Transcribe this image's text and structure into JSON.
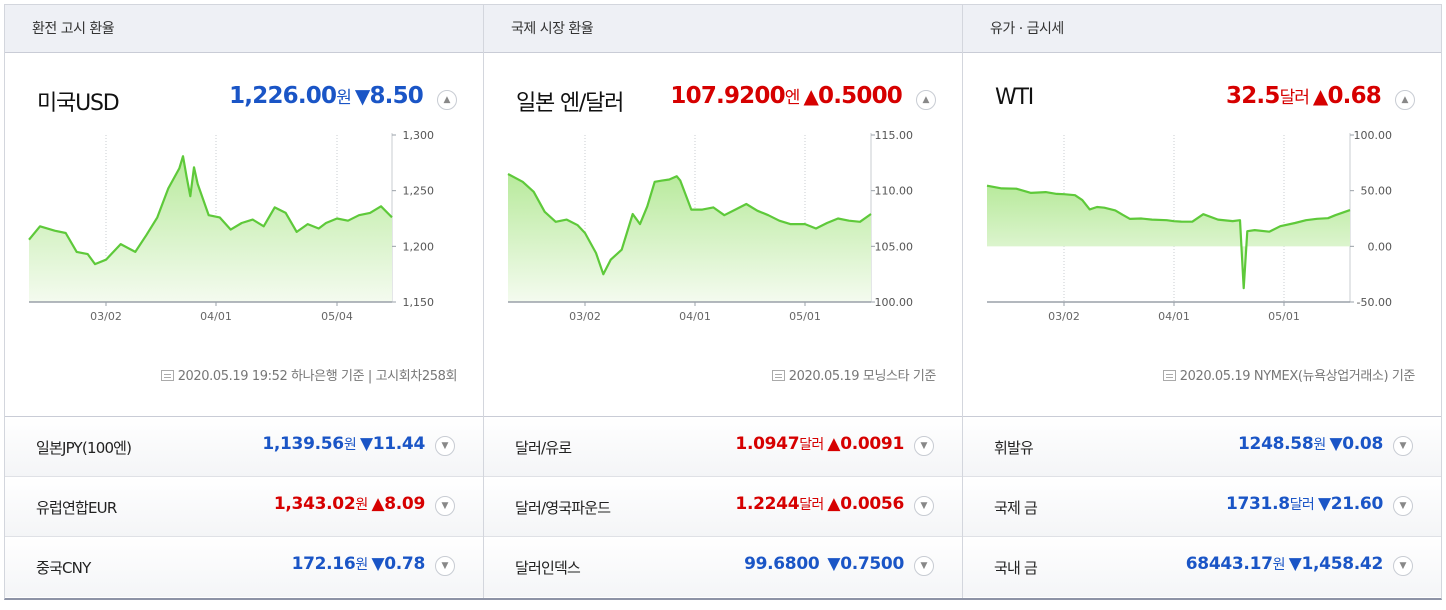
{
  "columns": [
    {
      "header": "환전 고시 환율",
      "main": {
        "title": "미국USD",
        "price": "1,226.00",
        "unit": "원",
        "arrow": "▼",
        "change": "8.50",
        "direction": "down",
        "toggle_icon": "chevron-up-icon"
      },
      "chart_data": {
        "type": "area",
        "yticks": [
          "1,300",
          "1,250",
          "1,200",
          "1,150"
        ],
        "ylim": [
          1150,
          1300
        ],
        "xticks": [
          "03/02",
          "04/01",
          "05/04"
        ],
        "xtick_dates": [
          "2020-03-02",
          "2020-04-01",
          "2020-05-04"
        ],
        "xlim": [
          "2020-02-10",
          "2020-05-19"
        ],
        "series": [
          {
            "values": [
              [
                "2020-02-10",
                1206
              ],
              [
                "2020-02-13",
                1218
              ],
              [
                "2020-02-17",
                1214
              ],
              [
                "2020-02-20",
                1212
              ],
              [
                "2020-02-23",
                1195
              ],
              [
                "2020-02-26",
                1193
              ],
              [
                "2020-02-28",
                1184
              ],
              [
                "2020-03-02",
                1188
              ],
              [
                "2020-03-06",
                1202
              ],
              [
                "2020-03-10",
                1195
              ],
              [
                "2020-03-13",
                1210
              ],
              [
                "2020-03-16",
                1226
              ],
              [
                "2020-03-19",
                1252
              ],
              [
                "2020-03-22",
                1270
              ],
              [
                "2020-03-23",
                1281
              ],
              [
                "2020-03-24",
                1262
              ],
              [
                "2020-03-25",
                1245
              ],
              [
                "2020-03-26",
                1271
              ],
              [
                "2020-03-27",
                1256
              ],
              [
                "2020-03-30",
                1228
              ],
              [
                "2020-04-02",
                1226
              ],
              [
                "2020-04-05",
                1215
              ],
              [
                "2020-04-08",
                1221
              ],
              [
                "2020-04-11",
                1224
              ],
              [
                "2020-04-14",
                1218
              ],
              [
                "2020-04-17",
                1235
              ],
              [
                "2020-04-20",
                1230
              ],
              [
                "2020-04-23",
                1213
              ],
              [
                "2020-04-26",
                1220
              ],
              [
                "2020-04-29",
                1216
              ],
              [
                "2020-05-01",
                1221
              ],
              [
                "2020-05-04",
                1225
              ],
              [
                "2020-05-07",
                1223
              ],
              [
                "2020-05-10",
                1228
              ],
              [
                "2020-05-13",
                1230
              ],
              [
                "2020-05-16",
                1236
              ],
              [
                "2020-05-19",
                1226
              ]
            ]
          }
        ]
      },
      "source_text": "2020.05.19 19:52 하나은행 기준 | 고시회차258회",
      "rows": [
        {
          "name": "일본JPY(100엔)",
          "price": "1,139.56",
          "unit": "원",
          "arrow": "▼",
          "change": "11.44",
          "direction": "down"
        },
        {
          "name": "유럽연합EUR",
          "price": "1,343.02",
          "unit": "원",
          "arrow": "▲",
          "change": "8.09",
          "direction": "up"
        },
        {
          "name": "중국CNY",
          "price": "172.16",
          "unit": "원",
          "arrow": "▼",
          "change": "0.78",
          "direction": "down"
        }
      ]
    },
    {
      "header": "국제 시장 환율",
      "main": {
        "title": "일본 엔/달러",
        "price": "107.9200",
        "unit": "엔",
        "arrow": "▲",
        "change": "0.5000",
        "direction": "up",
        "toggle_icon": "chevron-up-icon"
      },
      "chart_data": {
        "type": "area",
        "yticks": [
          "115.00",
          "110.00",
          "105.00",
          "100.00"
        ],
        "ylim": [
          100,
          115
        ],
        "xticks": [
          "03/02",
          "04/01",
          "05/01"
        ],
        "xtick_dates": [
          "2020-03-02",
          "2020-04-01",
          "2020-05-01"
        ],
        "xlim": [
          "2020-02-10",
          "2020-05-19"
        ],
        "series": [
          {
            "values": [
              [
                "2020-02-10",
                111.5
              ],
              [
                "2020-02-14",
                110.8
              ],
              [
                "2020-02-17",
                109.9
              ],
              [
                "2020-02-20",
                108.1
              ],
              [
                "2020-02-23",
                107.2
              ],
              [
                "2020-02-26",
                107.4
              ],
              [
                "2020-02-29",
                106.9
              ],
              [
                "2020-03-02",
                106.2
              ],
              [
                "2020-03-05",
                104.4
              ],
              [
                "2020-03-07",
                102.5
              ],
              [
                "2020-03-09",
                103.8
              ],
              [
                "2020-03-12",
                104.7
              ],
              [
                "2020-03-15",
                107.9
              ],
              [
                "2020-03-17",
                107.0
              ],
              [
                "2020-03-19",
                108.6
              ],
              [
                "2020-03-21",
                110.8
              ],
              [
                "2020-03-23",
                110.9
              ],
              [
                "2020-03-25",
                111.0
              ],
              [
                "2020-03-27",
                111.3
              ],
              [
                "2020-03-28",
                110.9
              ],
              [
                "2020-03-31",
                108.3
              ],
              [
                "2020-04-03",
                108.3
              ],
              [
                "2020-04-06",
                108.5
              ],
              [
                "2020-04-09",
                107.8
              ],
              [
                "2020-04-12",
                108.3
              ],
              [
                "2020-04-15",
                108.8
              ],
              [
                "2020-04-18",
                108.2
              ],
              [
                "2020-04-21",
                107.8
              ],
              [
                "2020-04-24",
                107.3
              ],
              [
                "2020-04-27",
                107.0
              ],
              [
                "2020-05-01",
                107.0
              ],
              [
                "2020-05-04",
                106.6
              ],
              [
                "2020-05-07",
                107.1
              ],
              [
                "2020-05-10",
                107.5
              ],
              [
                "2020-05-13",
                107.3
              ],
              [
                "2020-05-16",
                107.2
              ],
              [
                "2020-05-19",
                107.9
              ]
            ]
          }
        ]
      },
      "source_text": "2020.05.19 모닝스타 기준",
      "rows": [
        {
          "name": "달러/유로",
          "price": "1.0947",
          "unit": "달러",
          "arrow": "▲",
          "change": "0.0091",
          "direction": "up"
        },
        {
          "name": "달러/영국파운드",
          "price": "1.2244",
          "unit": "달러",
          "arrow": "▲",
          "change": "0.0056",
          "direction": "up"
        },
        {
          "name": "달러인덱스",
          "price": "99.6800",
          "unit": "",
          "arrow": "▼",
          "change": "0.7500",
          "direction": "down"
        }
      ]
    },
    {
      "header": "유가 · 금시세",
      "main": {
        "title": "WTI",
        "price": "32.5",
        "unit": "달러",
        "arrow": "▲",
        "change": "0.68",
        "direction": "up",
        "toggle_icon": "chevron-up-icon"
      },
      "chart_data": {
        "type": "area",
        "yticks": [
          "100.00",
          "50.00",
          "0.00",
          "-50.00"
        ],
        "ylim": [
          -50,
          100
        ],
        "xticks": [
          "03/02",
          "04/01",
          "05/01"
        ],
        "xtick_dates": [
          "2020-03-02",
          "2020-04-01",
          "2020-05-01"
        ],
        "xlim": [
          "2020-02-10",
          "2020-05-19"
        ],
        "series": [
          {
            "values": [
              [
                "2020-02-10",
                54.5
              ],
              [
                "2020-02-14",
                52.0
              ],
              [
                "2020-02-18",
                51.8
              ],
              [
                "2020-02-22",
                48.0
              ],
              [
                "2020-02-26",
                48.7
              ],
              [
                "2020-02-29",
                47.1
              ],
              [
                "2020-03-02",
                46.8
              ],
              [
                "2020-03-05",
                45.9
              ],
              [
                "2020-03-07",
                41.5
              ],
              [
                "2020-03-09",
                33.2
              ],
              [
                "2020-03-11",
                35.3
              ],
              [
                "2020-03-13",
                34.7
              ],
              [
                "2020-03-16",
                32.3
              ],
              [
                "2020-03-18",
                28.3
              ],
              [
                "2020-03-20",
                24.6
              ],
              [
                "2020-03-23",
                25.0
              ],
              [
                "2020-03-26",
                24.0
              ],
              [
                "2020-03-30",
                23.5
              ],
              [
                "2020-04-01",
                22.6
              ],
              [
                "2020-04-03",
                22.2
              ],
              [
                "2020-04-06",
                22.1
              ],
              [
                "2020-04-09",
                28.9
              ],
              [
                "2020-04-13",
                24.0
              ],
              [
                "2020-04-17",
                22.7
              ],
              [
                "2020-04-19",
                23.5
              ],
              [
                "2020-04-20",
                -37.6
              ],
              [
                "2020-04-21",
                13.6
              ],
              [
                "2020-04-23",
                14.6
              ],
              [
                "2020-04-27",
                13.1
              ],
              [
                "2020-04-30",
                18.1
              ],
              [
                "2020-05-04",
                21.0
              ],
              [
                "2020-05-07",
                23.5
              ],
              [
                "2020-05-10",
                24.7
              ],
              [
                "2020-05-13",
                25.3
              ],
              [
                "2020-05-15",
                28.0
              ],
              [
                "2020-05-19",
                32.5
              ]
            ]
          }
        ]
      },
      "source_text": "2020.05.19 NYMEX(뉴욕상업거래소) 기준",
      "rows": [
        {
          "name": "휘발유",
          "price": "1248.58",
          "unit": "원",
          "arrow": "▼",
          "change": "0.08",
          "direction": "down"
        },
        {
          "name": "국제 금",
          "price": "1731.8",
          "unit": "달러",
          "arrow": "▼",
          "change": "21.60",
          "direction": "down"
        },
        {
          "name": "국내 금",
          "price": "68443.17",
          "unit": "원",
          "arrow": "▼",
          "change": "1,458.42",
          "direction": "down"
        }
      ]
    }
  ],
  "icons": {
    "toggle_up": "chevron-up-icon",
    "toggle_down": "chevron-down-icon",
    "source": "document-icon"
  },
  "colors": {
    "up": "#d60000",
    "down": "#1a55c6",
    "line": "#5ec93a",
    "area_top": "#b8ea9c",
    "area_bottom": "#f4fbef"
  }
}
